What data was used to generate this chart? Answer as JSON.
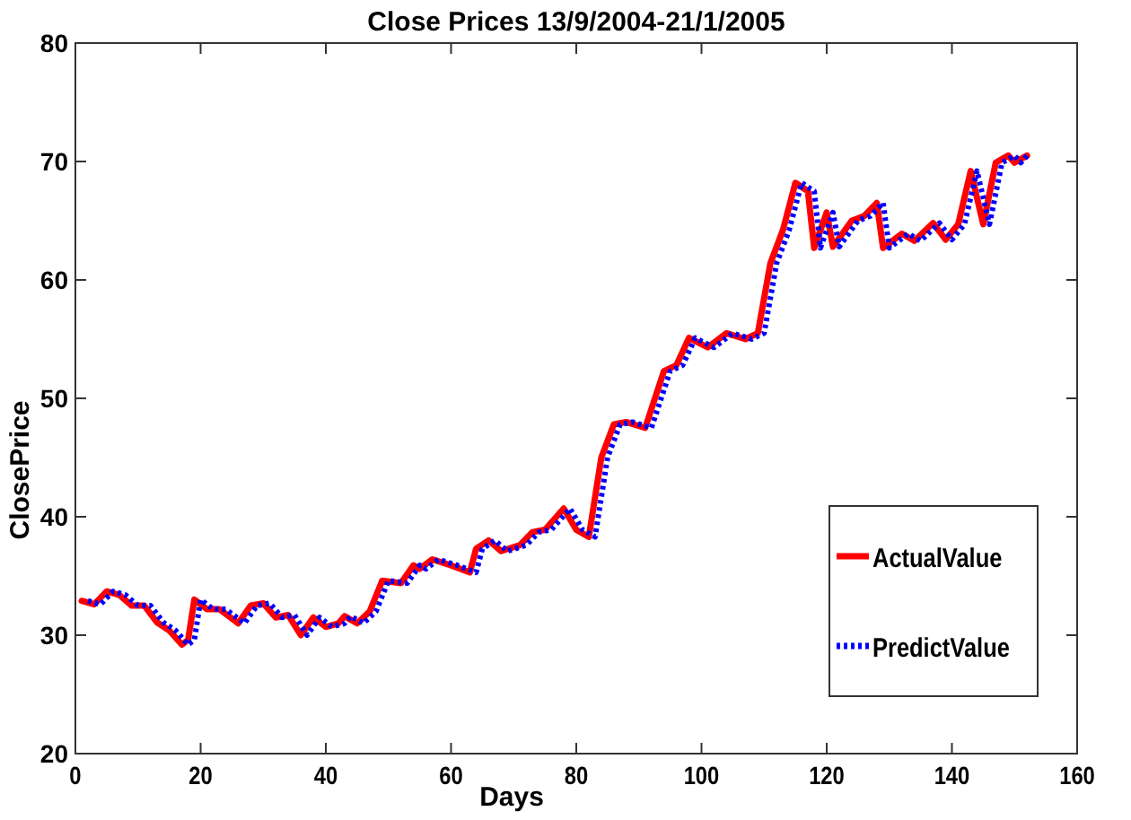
{
  "chart_data": {
    "type": "line",
    "title": "Close Prices 13/9/2004-21/1/2005",
    "xlabel": "Days",
    "ylabel": "ClosePrice",
    "xlim": [
      0,
      160
    ],
    "xticks": [
      0,
      20,
      40,
      60,
      80,
      100,
      120,
      140,
      160
    ],
    "ylim": [
      20,
      80
    ],
    "yticks": [
      20,
      30,
      40,
      50,
      60,
      70,
      80
    ],
    "grid": false,
    "legend": "bottom right",
    "series": [
      {
        "name": "ActualValue",
        "color": "#ff0000",
        "line_style": "solid",
        "x": [
          1,
          3,
          5,
          7,
          9,
          11,
          13,
          15,
          17,
          18,
          19,
          21,
          23,
          26,
          28,
          30,
          32,
          34,
          36,
          38,
          40,
          42,
          43,
          45,
          47,
          49,
          52,
          54,
          55,
          57,
          60,
          63,
          64,
          66,
          68,
          71,
          73,
          75,
          78,
          80,
          82,
          84,
          86,
          88,
          91,
          94,
          96,
          98,
          101,
          104,
          107,
          109,
          111,
          113,
          115,
          117,
          118,
          120,
          121,
          124,
          126,
          128,
          129,
          132,
          134,
          137,
          139,
          141,
          143,
          145,
          147,
          149,
          150,
          152
        ],
        "values": [
          32.9,
          32.6,
          33.7,
          33.4,
          32.5,
          32.5,
          31.1,
          30.4,
          29.2,
          29.6,
          33.0,
          32.2,
          32.2,
          31.0,
          32.5,
          32.7,
          31.5,
          31.7,
          30.0,
          31.5,
          30.7,
          31.0,
          31.6,
          31.0,
          32.0,
          34.6,
          34.4,
          35.9,
          35.6,
          36.4,
          35.9,
          35.3,
          37.3,
          38.0,
          37.1,
          37.6,
          38.7,
          38.9,
          40.7,
          38.9,
          38.3,
          45.0,
          47.8,
          48.0,
          47.5,
          52.3,
          52.8,
          55.1,
          54.3,
          55.5,
          55.0,
          55.5,
          61.4,
          64.2,
          68.2,
          67.5,
          62.7,
          65.7,
          62.8,
          65.0,
          65.4,
          66.5,
          62.7,
          63.9,
          63.3,
          64.8,
          63.4,
          64.7,
          69.2,
          64.7,
          69.9,
          70.5,
          69.9,
          70.5
        ]
      },
      {
        "name": "PredictValue",
        "color": "#0000ff",
        "line_style": "dotted",
        "x": [
          2,
          4,
          6,
          8,
          10,
          12,
          14,
          16,
          18,
          19,
          20,
          22,
          24,
          27,
          29,
          31,
          33,
          35,
          37,
          39,
          41,
          43,
          44,
          46,
          48,
          50,
          53,
          55,
          56,
          58,
          61,
          64,
          65,
          67,
          69,
          72,
          74,
          76,
          79,
          81,
          83,
          85,
          87,
          89,
          92,
          95,
          97,
          99,
          102,
          105,
          108,
          110,
          112,
          114,
          116,
          118,
          119,
          121,
          122,
          125,
          127,
          129,
          130,
          133,
          135,
          138,
          140,
          142,
          144,
          146,
          148,
          150,
          151,
          152
        ],
        "values": [
          32.9,
          32.6,
          33.7,
          33.4,
          32.5,
          32.5,
          31.1,
          30.4,
          29.2,
          29.6,
          33.0,
          32.2,
          32.2,
          31.0,
          32.5,
          32.7,
          31.5,
          31.7,
          30.0,
          31.5,
          30.7,
          31.0,
          31.6,
          31.0,
          32.0,
          34.6,
          34.4,
          35.9,
          35.6,
          36.4,
          35.9,
          35.3,
          37.3,
          38.0,
          37.1,
          37.6,
          38.7,
          38.9,
          40.7,
          38.9,
          38.3,
          45.0,
          47.8,
          48.0,
          47.5,
          52.3,
          52.8,
          55.1,
          54.3,
          55.5,
          55.0,
          55.5,
          61.4,
          64.2,
          68.2,
          67.5,
          62.7,
          65.7,
          62.8,
          65.0,
          65.4,
          66.5,
          62.7,
          63.9,
          63.3,
          64.8,
          63.4,
          64.7,
          69.2,
          64.7,
          69.9,
          70.5,
          69.9,
          70.5
        ]
      }
    ]
  }
}
